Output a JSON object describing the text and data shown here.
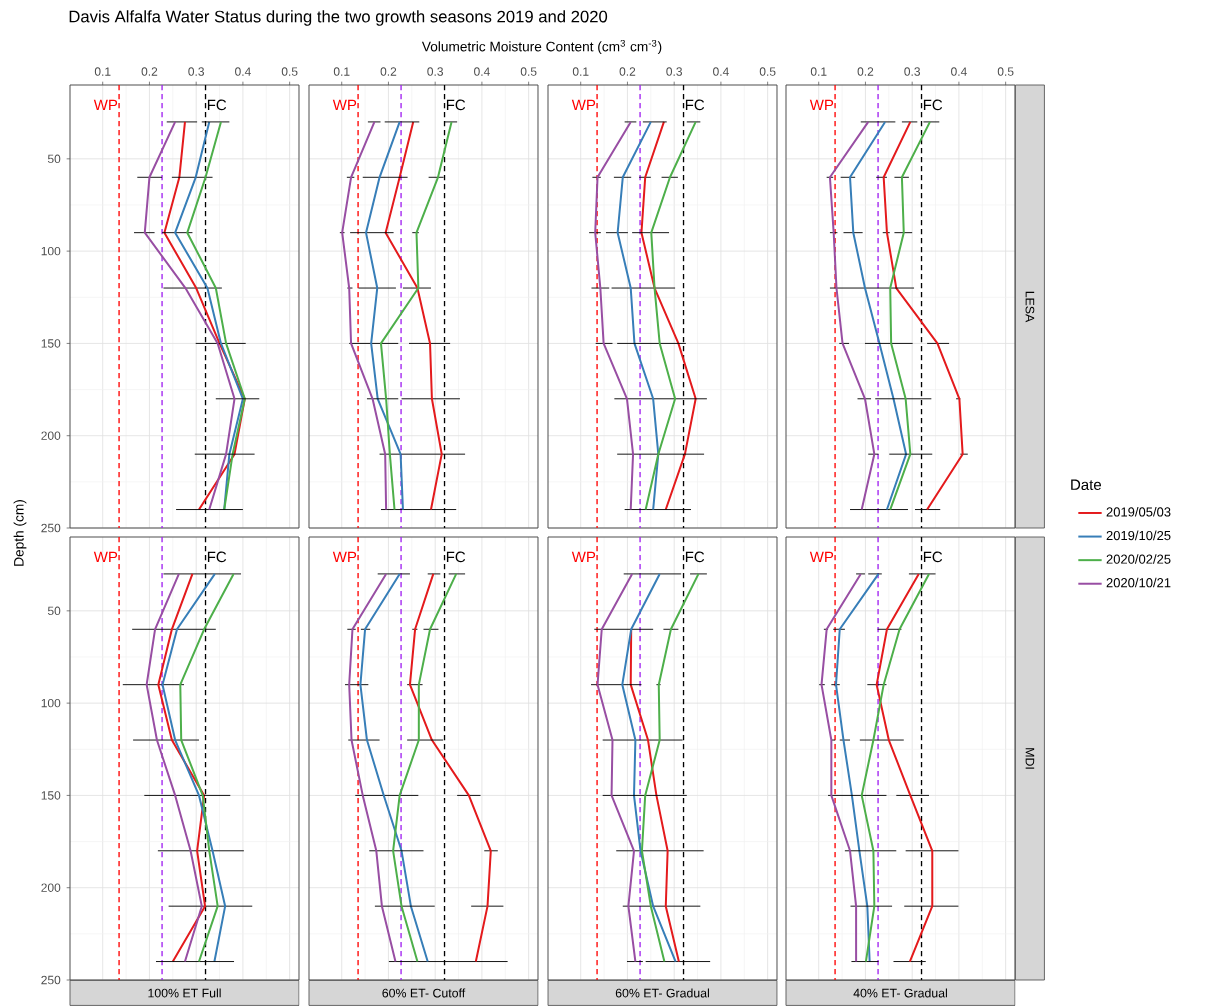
{
  "chart_data": [
    {
      "type": "line",
      "title": "Davis Alfalfa Water Status during the two growth seasons 2019 and 2020",
      "ylabel": "Depth (cm)",
      "xlim": [
        0.03,
        0.52
      ],
      "ylim": [
        250,
        10
      ],
      "xticks": [
        0.1,
        0.2,
        0.3,
        0.4,
        0.5
      ],
      "yticks": [
        50,
        100,
        150,
        200,
        250
      ],
      "grid": true,
      "ref_lines": [
        {
          "axis": "x",
          "value": 0.135,
          "label": "WP",
          "color": "#ff0000",
          "line_style": "dashed"
        },
        {
          "axis": "x",
          "value": 0.227,
          "color": "#a020f0",
          "line_style": "dashed"
        },
        {
          "axis": "x",
          "value": 0.32,
          "label": "FC",
          "color": "#000000",
          "line_style": "dashed"
        }
      ],
      "series": [
        {
          "color": "#e41a1c",
          "x": [
            0.276,
            0.264,
            0.232,
            0.3,
            0.35,
            0.404,
            0.382,
            0.306
          ],
          "values": [
            30,
            60,
            90,
            120,
            150,
            180,
            210,
            240
          ],
          "xerrors": [
            [
              0.237,
              0.302
            ],
            null,
            null,
            [
              0.23,
              0.355
            ],
            null,
            null,
            null,
            null
          ]
        },
        {
          "color": "#377eb8",
          "x": [
            0.328,
            0.299,
            0.255,
            0.324,
            0.353,
            0.4,
            0.371,
            0.36
          ],
          "values": [
            30,
            60,
            90,
            120,
            150,
            180,
            210,
            240
          ],
          "xerrors": [
            null,
            [
              0.248,
              0.335
            ],
            [
              0.227,
              0.292
            ],
            null,
            [
              0.299,
              0.406
            ],
            null,
            null,
            null
          ]
        },
        {
          "color": "#4daf4a",
          "x": [
            0.353,
            0.32,
            0.281,
            0.342,
            0.364,
            0.404,
            0.378,
            0.36
          ],
          "values": [
            30,
            60,
            90,
            120,
            150,
            180,
            210,
            240
          ],
          "xerrors": [
            [
              0.312,
              0.371
            ],
            null,
            null,
            null,
            null,
            null,
            null,
            null
          ]
        },
        {
          "color": "#984ea3",
          "x": [
            0.255,
            0.2,
            0.19,
            0.277,
            0.346,
            0.382,
            0.364,
            0.328
          ],
          "values": [
            30,
            60,
            90,
            120,
            150,
            180,
            210,
            240
          ],
          "xerrors": [
            null,
            [
              0.174,
              0.227
            ],
            [
              0.167,
              0.211
            ],
            null,
            null,
            [
              0.342,
              0.435
            ],
            [
              0.297,
              0.425
            ],
            [
              0.257,
              0.4
            ]
          ]
        }
      ]
    },
    {
      "type": "line",
      "annotations": [
        "Volumetric Moisture Content (cm$^{3}$ cm$^{-3}$)"
      ],
      "xlim": [
        0.03,
        0.52
      ],
      "ylim": [
        250,
        10
      ],
      "xticks": [
        0.1,
        0.2,
        0.3,
        0.4,
        0.5
      ],
      "yticks": [
        50,
        100,
        150,
        200,
        250
      ],
      "grid": true,
      "tick_labels": "x",
      "ref_lines": [
        {
          "axis": "x",
          "value": 0.135,
          "label": "WP",
          "color": "#ff0000",
          "line_style": "dashed"
        },
        {
          "axis": "x",
          "value": 0.227,
          "color": "#a020f0",
          "line_style": "dashed"
        },
        {
          "axis": "x",
          "value": 0.32,
          "label": "FC",
          "color": "#000000",
          "line_style": "dashed"
        }
      ],
      "series": [
        {
          "color": "#e41a1c",
          "x": [
            0.253,
            0.224,
            0.194,
            0.262,
            0.289,
            0.293,
            0.314,
            0.291
          ],
          "values": [
            30,
            60,
            90,
            120,
            150,
            180,
            210,
            240
          ],
          "xerrors": [
            null,
            null,
            null,
            [
              0.231,
              0.291
            ],
            [
              0.244,
              0.332
            ],
            [
              0.228,
              0.353
            ],
            [
              0.181,
              0.364
            ],
            [
              0.184,
              0.345
            ]
          ]
        },
        {
          "color": "#377eb8",
          "x": [
            0.224,
            0.181,
            0.152,
            0.176,
            0.163,
            0.177,
            0.226,
            0.231
          ],
          "values": [
            30,
            60,
            90,
            120,
            150,
            180,
            210,
            240
          ],
          "xerrors": [
            [
              0.192,
              0.266
            ],
            [
              0.145,
              0.241
            ],
            [
              0.118,
              0.211
            ],
            [
              0.136,
              0.216
            ],
            [
              0.116,
              0.221
            ],
            null,
            null,
            null
          ]
        },
        {
          "color": "#4daf4a",
          "x": [
            0.335,
            0.306,
            0.26,
            0.264,
            0.184,
            0.195,
            0.203,
            0.213
          ],
          "values": [
            30,
            60,
            90,
            120,
            150,
            180,
            210,
            240
          ],
          "xerrors": [
            [
              0.32,
              0.347
            ],
            [
              0.286,
              0.318
            ],
            [
              0.251,
              0.265
            ],
            null,
            null,
            [
              0.154,
              0.221
            ],
            null,
            null
          ]
        },
        {
          "color": "#984ea3",
          "x": [
            0.17,
            0.12,
            0.101,
            0.116,
            0.12,
            0.166,
            0.193,
            0.195
          ],
          "values": [
            30,
            60,
            90,
            120,
            150,
            180,
            210,
            240
          ],
          "xerrors": [
            [
              0.156,
              0.183
            ],
            [
              0.111,
              0.127
            ],
            [
              0.096,
              0.106
            ],
            [
              0.112,
              0.123
            ],
            null,
            null,
            null,
            null
          ]
        }
      ]
    },
    {
      "type": "line",
      "xlim": [
        0.03,
        0.52
      ],
      "ylim": [
        250,
        10
      ],
      "xticks": [
        0.1,
        0.2,
        0.3,
        0.4,
        0.5
      ],
      "yticks": [
        50,
        100,
        150,
        200,
        250
      ],
      "grid": true,
      "tick_labels": "x",
      "ref_lines": [
        {
          "axis": "x",
          "value": 0.135,
          "label": "WP",
          "color": "#ff0000",
          "line_style": "dashed"
        },
        {
          "axis": "x",
          "value": 0.227,
          "color": "#a020f0",
          "line_style": "dashed"
        },
        {
          "axis": "x",
          "value": 0.32,
          "label": "FC",
          "color": "#000000",
          "line_style": "dashed"
        }
      ],
      "series": [
        {
          "color": "#e41a1c",
          "x": [
            0.278,
            0.238,
            0.23,
            0.258,
            0.309,
            0.346,
            0.323,
            0.282
          ],
          "values": [
            30,
            60,
            90,
            120,
            150,
            180,
            210,
            240
          ],
          "xerrors": [
            null,
            [
              0.225,
              0.25
            ],
            null,
            [
              0.166,
              0.302
            ],
            null,
            null,
            null,
            null
          ]
        },
        {
          "color": "#377eb8",
          "x": [
            0.25,
            0.19,
            0.179,
            0.207,
            0.215,
            0.255,
            0.266,
            0.255
          ],
          "values": [
            30,
            60,
            90,
            120,
            150,
            180,
            210,
            240
          ],
          "xerrors": [
            [
              0.233,
              0.284
            ],
            [
              0.171,
              0.208
            ],
            [
              0.154,
              0.201
            ],
            null,
            null,
            [
              0.172,
              0.37
            ],
            null,
            [
              0.194,
              0.336
            ]
          ]
        },
        {
          "color": "#4daf4a",
          "x": [
            0.346,
            0.291,
            0.251,
            0.258,
            0.269,
            0.302,
            0.266,
            0.239
          ],
          "values": [
            30,
            60,
            90,
            120,
            150,
            180,
            210,
            240
          ],
          "xerrors": [
            [
              0.327,
              0.356
            ],
            [
              0.273,
              0.308
            ],
            [
              0.21,
              0.289
            ],
            null,
            [
              0.178,
              0.325
            ],
            null,
            [
              0.178,
              0.364
            ],
            null
          ]
        },
        {
          "color": "#984ea3",
          "x": [
            0.207,
            0.136,
            0.131,
            0.142,
            0.149,
            0.199,
            0.212,
            0.207
          ],
          "values": [
            30,
            60,
            90,
            120,
            150,
            180,
            210,
            240
          ],
          "xerrors": [
            [
              0.194,
              0.219
            ],
            [
              0.125,
              0.143
            ],
            [
              0.118,
              0.143
            ],
            [
              0.123,
              0.161
            ],
            [
              0.132,
              0.168
            ],
            null,
            null,
            null
          ]
        }
      ]
    },
    {
      "type": "line",
      "y2label": "LESA",
      "xlim": [
        0.03,
        0.52
      ],
      "ylim": [
        250,
        10
      ],
      "xticks": [
        0.1,
        0.2,
        0.3,
        0.4,
        0.5
      ],
      "yticks": [
        50,
        100,
        150,
        200,
        250
      ],
      "grid": true,
      "tick_labels": "x",
      "ref_lines": [
        {
          "axis": "x",
          "value": 0.135,
          "label": "WP",
          "color": "#ff0000",
          "line_style": "dashed"
        },
        {
          "axis": "x",
          "value": 0.227,
          "color": "#a020f0",
          "line_style": "dashed"
        },
        {
          "axis": "x",
          "value": 0.32,
          "label": "FC",
          "color": "#000000",
          "line_style": "dashed"
        }
      ],
      "series": [
        {
          "color": "#e41a1c",
          "x": [
            0.296,
            0.239,
            0.246,
            0.266,
            0.354,
            0.401,
            0.408,
            0.332
          ],
          "values": [
            30,
            60,
            90,
            120,
            150,
            180,
            210,
            240
          ],
          "xerrors": [
            [
              0.278,
              0.311
            ],
            [
              0.223,
              0.246
            ],
            [
              0.237,
              0.252
            ],
            null,
            [
              0.332,
              0.379
            ],
            [
              0.394,
              0.403
            ],
            [
              0.403,
              0.419
            ],
            [
              0.306,
              0.36
            ]
          ]
        },
        {
          "color": "#377eb8",
          "x": [
            0.242,
            0.167,
            0.174,
            0.199,
            0.23,
            0.26,
            0.287,
            0.246
          ],
          "values": [
            30,
            60,
            90,
            120,
            150,
            180,
            210,
            240
          ],
          "xerrors": [
            [
              0.19,
              0.264
            ],
            [
              0.147,
              0.178
            ],
            [
              0.153,
              0.194
            ],
            [
              0.124,
              0.304
            ],
            null,
            null,
            null,
            [
              0.167,
              0.291
            ]
          ]
        },
        {
          "color": "#4daf4a",
          "x": [
            0.338,
            0.278,
            0.282,
            0.253,
            0.255,
            0.286,
            0.296,
            0.253
          ],
          "values": [
            30,
            60,
            90,
            120,
            150,
            180,
            210,
            240
          ],
          "xerrors": [
            [
              0.324,
              0.358
            ],
            [
              0.262,
              0.293
            ],
            [
              0.262,
              0.3
            ],
            null,
            [
              0.199,
              0.301
            ],
            [
              0.221,
              0.341
            ],
            [
              0.251,
              0.343
            ],
            null
          ]
        },
        {
          "color": "#984ea3",
          "x": [
            0.206,
            0.124,
            0.132,
            0.138,
            0.151,
            0.199,
            0.219,
            0.192
          ],
          "values": [
            30,
            60,
            90,
            120,
            150,
            180,
            210,
            240
          ],
          "xerrors": [
            null,
            [
              0.117,
              0.131
            ],
            [
              0.124,
              0.14
            ],
            null,
            [
              0.144,
              0.165
            ],
            [
              0.183,
              0.212
            ],
            [
              0.206,
              0.228
            ],
            null
          ]
        }
      ]
    },
    {
      "type": "line",
      "xlabel": "100% ET Full",
      "xlim": [
        0.03,
        0.52
      ],
      "ylim": [
        250,
        10
      ],
      "xticks": [
        0.1,
        0.2,
        0.3,
        0.4,
        0.5
      ],
      "yticks": [
        50,
        100,
        150,
        200,
        250
      ],
      "grid": true,
      "tick_labels": "y",
      "ref_lines": [
        {
          "axis": "x",
          "value": 0.135,
          "label": "WP",
          "color": "#ff0000",
          "line_style": "dashed"
        },
        {
          "axis": "x",
          "value": 0.227,
          "color": "#a020f0",
          "line_style": "dashed"
        },
        {
          "axis": "x",
          "value": 0.32,
          "label": "FC",
          "color": "#000000",
          "line_style": "dashed"
        }
      ],
      "series": [
        {
          "color": "#e41a1c",
          "x": [
            0.292,
            0.248,
            0.219,
            0.248,
            0.317,
            0.302,
            0.319,
            0.25
          ],
          "values": [
            30,
            60,
            90,
            120,
            150,
            180,
            210,
            240
          ],
          "xerrors": [
            [
              0.23,
              0.396
            ],
            [
              0.163,
              0.342
            ],
            [
              0.143,
              0.274
            ],
            [
              0.165,
              0.306
            ],
            null,
            [
              0.218,
              0.402
            ],
            [
              0.241,
              0.42
            ],
            null
          ]
        },
        {
          "color": "#377eb8",
          "x": [
            0.34,
            0.259,
            0.228,
            0.255,
            0.306,
            0.335,
            0.362,
            0.339
          ],
          "values": [
            30,
            60,
            90,
            120,
            150,
            180,
            210,
            240
          ],
          "xerrors": [
            null,
            null,
            null,
            null,
            [
              0.189,
              0.373
            ],
            null,
            null,
            null
          ]
        },
        {
          "color": "#4daf4a",
          "x": [
            0.38,
            0.317,
            0.266,
            0.268,
            0.314,
            0.328,
            0.346,
            0.306
          ],
          "values": [
            30,
            60,
            90,
            120,
            150,
            180,
            210,
            240
          ],
          "xerrors": [
            null,
            null,
            null,
            null,
            null,
            null,
            null,
            [
              0.214,
              0.381
            ]
          ]
        },
        {
          "color": "#984ea3",
          "x": [
            0.263,
            0.212,
            0.194,
            0.216,
            0.255,
            0.288,
            0.312,
            0.276
          ],
          "values": [
            30,
            60,
            90,
            120,
            150,
            180,
            210,
            240
          ]
        }
      ]
    },
    {
      "type": "line",
      "xlabel": "60% ET- Cutoff",
      "xlim": [
        0.03,
        0.52
      ],
      "ylim": [
        250,
        10
      ],
      "xticks": [
        0.1,
        0.2,
        0.3,
        0.4,
        0.5
      ],
      "yticks": [
        50,
        100,
        150,
        200,
        250
      ],
      "grid": true,
      "tick_labels": false,
      "ref_lines": [
        {
          "axis": "x",
          "value": 0.135,
          "label": "WP",
          "color": "#ff0000",
          "line_style": "dashed"
        },
        {
          "axis": "x",
          "value": 0.227,
          "color": "#a020f0",
          "line_style": "dashed"
        },
        {
          "axis": "x",
          "value": 0.32,
          "label": "FC",
          "color": "#000000",
          "line_style": "dashed"
        }
      ],
      "series": [
        {
          "color": "#e41a1c",
          "x": [
            0.296,
            0.257,
            0.246,
            0.293,
            0.372,
            0.419,
            0.412,
            0.387
          ],
          "values": [
            30,
            60,
            90,
            120,
            150,
            180,
            210,
            240
          ],
          "xerrors": [
            [
              0.284,
              0.311
            ],
            [
              0.251,
              0.262
            ],
            [
              0.24,
              0.273
            ],
            null,
            [
              0.347,
              0.397
            ],
            [
              0.405,
              0.434
            ],
            [
              0.377,
              0.446
            ],
            [
              0.201,
              0.455
            ]
          ]
        },
        {
          "color": "#377eb8",
          "x": [
            0.224,
            0.15,
            0.14,
            0.154,
            0.19,
            0.228,
            0.248,
            0.284
          ],
          "values": [
            30,
            60,
            90,
            120,
            150,
            180,
            210,
            240
          ],
          "xerrors": [
            [
              0.177,
              0.246
            ],
            [
              0.141,
              0.161
            ],
            [
              0.107,
              0.157
            ],
            [
              0.114,
              0.181
            ],
            [
              0.129,
              0.264
            ],
            null,
            null,
            null
          ]
        },
        {
          "color": "#4daf4a",
          "x": [
            0.345,
            0.289,
            0.265,
            0.265,
            0.224,
            0.21,
            0.228,
            0.262
          ],
          "values": [
            30,
            60,
            90,
            120,
            150,
            180,
            210,
            240
          ],
          "xerrors": [
            [
              0.329,
              0.364
            ],
            [
              0.275,
              0.307
            ],
            null,
            [
              0.24,
              0.317
            ],
            null,
            [
              0.159,
              0.275
            ],
            [
              0.171,
              0.299
            ],
            null
          ]
        },
        {
          "color": "#984ea3",
          "x": [
            0.195,
            0.123,
            0.116,
            0.121,
            0.145,
            0.174,
            0.186,
            0.215
          ],
          "values": [
            30,
            60,
            90,
            120,
            150,
            180,
            210,
            240
          ],
          "xerrors": [
            null,
            [
              0.112,
              0.13
            ],
            null,
            null,
            null,
            null,
            null,
            null
          ]
        }
      ]
    },
    {
      "type": "line",
      "xlabel": "60% ET- Gradual",
      "xlim": [
        0.03,
        0.52
      ],
      "ylim": [
        250,
        10
      ],
      "xticks": [
        0.1,
        0.2,
        0.3,
        0.4,
        0.5
      ],
      "yticks": [
        50,
        100,
        150,
        200,
        250
      ],
      "grid": true,
      "tick_labels": false,
      "ref_lines": [
        {
          "axis": "x",
          "value": 0.135,
          "label": "WP",
          "color": "#ff0000",
          "line_style": "dashed"
        },
        {
          "axis": "x",
          "value": 0.227,
          "color": "#a020f0",
          "line_style": "dashed"
        },
        {
          "axis": "x",
          "value": 0.32,
          "label": "FC",
          "color": "#000000",
          "line_style": "dashed"
        }
      ],
      "series": [
        {
          "color": "#e41a1c",
          "x": [
            0.208,
            0.207,
            0.244,
            0.262,
            0.286,
            0.282,
            0.31
          ],
          "values": [
            60,
            90,
            120,
            150,
            180,
            210,
            240
          ],
          "xerrors": [
            null,
            null,
            [
              0.147,
              0.318
            ],
            null,
            [
              0.176,
              0.363
            ],
            [
              0.19,
              0.356
            ],
            [
              0.239,
              0.377
            ]
          ]
        },
        {
          "color": "#377eb8",
          "x": [
            0.269,
            0.208,
            0.189,
            0.217,
            0.214,
            0.228,
            0.255,
            0.303
          ],
          "values": [
            30,
            60,
            90,
            120,
            150,
            180,
            210,
            240
          ],
          "xerrors": [
            [
              0.192,
              0.315
            ],
            [
              0.129,
              0.255
            ],
            [
              0.122,
              0.23
            ],
            null,
            null,
            null,
            null,
            null
          ]
        },
        {
          "color": "#4daf4a",
          "x": [
            0.352,
            0.293,
            0.267,
            0.269,
            0.238,
            0.231,
            0.25,
            0.279
          ],
          "values": [
            30,
            60,
            90,
            120,
            150,
            180,
            210,
            240
          ],
          "xerrors": [
            [
              0.334,
              0.37
            ],
            [
              0.277,
              0.309
            ],
            [
              0.262,
              0.271
            ],
            null,
            [
              0.147,
              0.327
            ],
            null,
            null,
            null
          ]
        },
        {
          "color": "#984ea3",
          "x": [
            0.21,
            0.145,
            0.136,
            0.168,
            0.166,
            0.214,
            0.202,
            0.217
          ],
          "values": [
            30,
            60,
            90,
            120,
            150,
            180,
            210,
            240
          ],
          "xerrors": [
            null,
            null,
            null,
            null,
            null,
            null,
            null,
            [
              0.199,
              0.233
            ]
          ]
        }
      ]
    },
    {
      "type": "line",
      "xlabel": "40% ET- Gradual",
      "y2label": "MDI",
      "legend": "right",
      "legend_title": "Date",
      "xlim": [
        0.03,
        0.52
      ],
      "ylim": [
        250,
        10
      ],
      "xticks": [
        0.1,
        0.2,
        0.3,
        0.4,
        0.5
      ],
      "yticks": [
        50,
        100,
        150,
        200,
        250
      ],
      "grid": true,
      "tick_labels": false,
      "ref_lines": [
        {
          "axis": "x",
          "value": 0.135,
          "label": "WP",
          "color": "#ff0000",
          "line_style": "dashed"
        },
        {
          "axis": "x",
          "value": 0.227,
          "color": "#a020f0",
          "line_style": "dashed"
        },
        {
          "axis": "x",
          "value": 0.32,
          "label": "FC",
          "color": "#000000",
          "line_style": "dashed"
        }
      ],
      "series": [
        {
          "name": "2019/05/03",
          "color": "#e41a1c",
          "x": [
            0.314,
            0.246,
            0.224,
            0.25,
            0.296,
            0.343,
            0.343,
            0.295
          ],
          "values": [
            30,
            60,
            90,
            120,
            150,
            180,
            210,
            240
          ],
          "xerrors": [
            [
              0.293,
              0.35
            ],
            [
              0.226,
              0.277
            ],
            [
              0.204,
              0.245
            ],
            [
              0.188,
              0.282
            ],
            [
              0.266,
              0.336
            ],
            [
              0.286,
              0.399
            ],
            [
              0.283,
              0.399
            ],
            [
              0.26,
              0.329
            ]
          ]
        },
        {
          "name": "2019/10/25",
          "color": "#377eb8",
          "x": [
            0.228,
            0.145,
            0.137,
            0.153,
            0.171,
            0.187,
            0.204,
            0.209
          ],
          "values": [
            30,
            60,
            90,
            120,
            150,
            180,
            210,
            240
          ],
          "xerrors": [
            [
              0.206,
              0.235
            ],
            [
              0.131,
              0.156
            ],
            [
              0.127,
              0.145
            ],
            [
              0.145,
              0.167
            ],
            null,
            null,
            null,
            null
          ]
        },
        {
          "name": "2020/02/25",
          "color": "#4daf4a",
          "x": [
            0.336,
            0.273,
            0.239,
            0.217,
            0.192,
            0.217,
            0.219,
            0.201
          ],
          "values": [
            30,
            60,
            90,
            120,
            150,
            180,
            210,
            240
          ],
          "xerrors": [
            null,
            null,
            null,
            null,
            [
              0.12,
              0.245
            ],
            [
              0.156,
              0.266
            ],
            [
              0.168,
              0.257
            ],
            [
              0.17,
              0.228
            ]
          ]
        },
        {
          "name": "2020/10/21",
          "color": "#984ea3",
          "x": [
            0.19,
            0.117,
            0.106,
            0.127,
            0.127,
            0.167,
            0.18,
            0.18
          ],
          "values": [
            30,
            60,
            90,
            120,
            150,
            180,
            210,
            240
          ],
          "xerrors": [
            [
              0.18,
              0.199
            ],
            [
              0.111,
              0.12
            ],
            [
              0.101,
              0.113
            ],
            [
              0.127,
              0.135
            ],
            null,
            null,
            null,
            null
          ]
        }
      ]
    }
  ]
}
